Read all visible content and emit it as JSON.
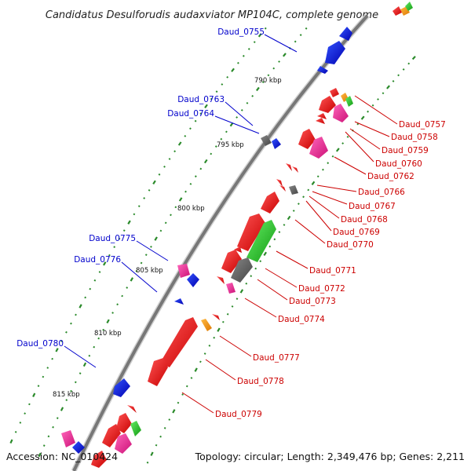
{
  "title": "Candidatus Desulforudis audaxviator MP104C, complete genome",
  "accession": "Accession: NC_010424",
  "topology": "Topology: circular; Length: 2,349,476 bp; Genes: 2,211",
  "colors": {
    "forward_cds": "#ff0000",
    "reverse_cds": "#0000ff",
    "rna": "#ff3399",
    "pseudo": "#666666",
    "orange": "#ff9900",
    "green": "#33cc33",
    "backbone": "#777777",
    "tick": "#2a8a2a",
    "left_label": "#0000cc",
    "right_label": "#cc0000"
  },
  "kbp_labels": [
    "790 kbp",
    "795 kbp",
    "800 kbp",
    "805 kbp",
    "810 kbp",
    "815 kbp"
  ],
  "left_genes": [
    {
      "label": "Daud_0755"
    },
    {
      "label": "Daud_0763"
    },
    {
      "label": "Daud_0764"
    },
    {
      "label": "Daud_0775"
    },
    {
      "label": "Daud_0776"
    },
    {
      "label": "Daud_0780"
    }
  ],
  "right_genes": [
    {
      "label": "Daud_0757"
    },
    {
      "label": "Daud_0758"
    },
    {
      "label": "Daud_0759"
    },
    {
      "label": "Daud_0760"
    },
    {
      "label": "Daud_0762"
    },
    {
      "label": "Daud_0766"
    },
    {
      "label": "Daud_0767"
    },
    {
      "label": "Daud_0768"
    },
    {
      "label": "Daud_0769"
    },
    {
      "label": "Daud_0770"
    },
    {
      "label": "Daud_0771"
    },
    {
      "label": "Daud_0772"
    },
    {
      "label": "Daud_0773"
    },
    {
      "label": "Daud_0774"
    },
    {
      "label": "Daud_0777"
    },
    {
      "label": "Daud_0778"
    },
    {
      "label": "Daud_0779"
    }
  ]
}
